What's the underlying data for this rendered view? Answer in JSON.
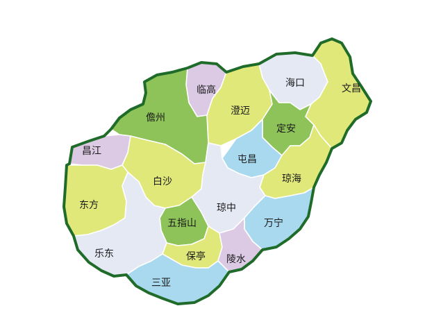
{
  "colors": {
    "lime": "#dfe879",
    "green": "#8dc358",
    "lavender": "#dcc9e4",
    "light": "#e5e9f4",
    "blue": "#a9d9ee",
    "coast": "#1f6b2a"
  },
  "regions": [
    {
      "key": "haikou",
      "name": "海口"
    },
    {
      "key": "wenchang",
      "name": "文昌"
    },
    {
      "key": "lingao",
      "name": "临高"
    },
    {
      "key": "chengmai",
      "name": "澄迈"
    },
    {
      "key": "danzhou",
      "name": "儋州"
    },
    {
      "key": "ding_an",
      "name": "定安"
    },
    {
      "key": "changjiang",
      "name": "昌江"
    },
    {
      "key": "tunchang",
      "name": "屯昌"
    },
    {
      "key": "baisha",
      "name": "白沙"
    },
    {
      "key": "qionghai",
      "name": "琼海"
    },
    {
      "key": "dongfang",
      "name": "东方"
    },
    {
      "key": "qiongzhong",
      "name": "琼中"
    },
    {
      "key": "wuzhishan",
      "name": "五指山"
    },
    {
      "key": "wanning",
      "name": "万宁"
    },
    {
      "key": "ledong",
      "name": "乐东"
    },
    {
      "key": "baoting",
      "name": "保亭"
    },
    {
      "key": "lingshui",
      "name": "陵水"
    },
    {
      "key": "sanya",
      "name": "三亚"
    }
  ]
}
